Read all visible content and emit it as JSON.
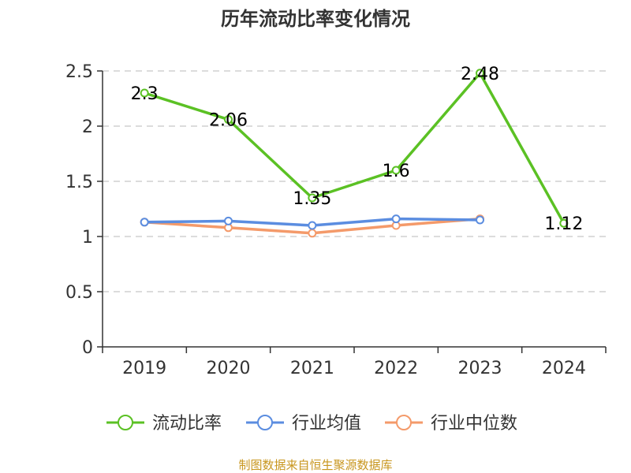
{
  "chart_data": {
    "type": "line",
    "title": "历年流动比率变化情况",
    "categories": [
      "2019",
      "2020",
      "2021",
      "2022",
      "2023",
      "2024"
    ],
    "ylim": [
      0,
      2.5
    ],
    "y_ticks": [
      "0",
      "0.5",
      "1",
      "1.5",
      "2",
      "2.5"
    ],
    "grid": true,
    "legend_position": "bottom",
    "series": [
      {
        "name": "流动比率",
        "color": "#5bc124",
        "values": [
          2.3,
          2.06,
          1.35,
          1.6,
          2.48,
          1.12
        ],
        "labels": [
          "2.3",
          "2.06",
          "1.35",
          "1.6",
          "2.48",
          "1.12"
        ]
      },
      {
        "name": "行业均值",
        "color": "#5b8de0",
        "values": [
          1.13,
          1.14,
          1.1,
          1.16,
          1.15,
          null
        ]
      },
      {
        "name": "行业中位数",
        "color": "#f49a6a",
        "values": [
          1.13,
          1.08,
          1.03,
          1.1,
          1.16,
          null
        ]
      }
    ]
  },
  "footer": {
    "source": "制图数据来自恒生聚源数据库"
  }
}
